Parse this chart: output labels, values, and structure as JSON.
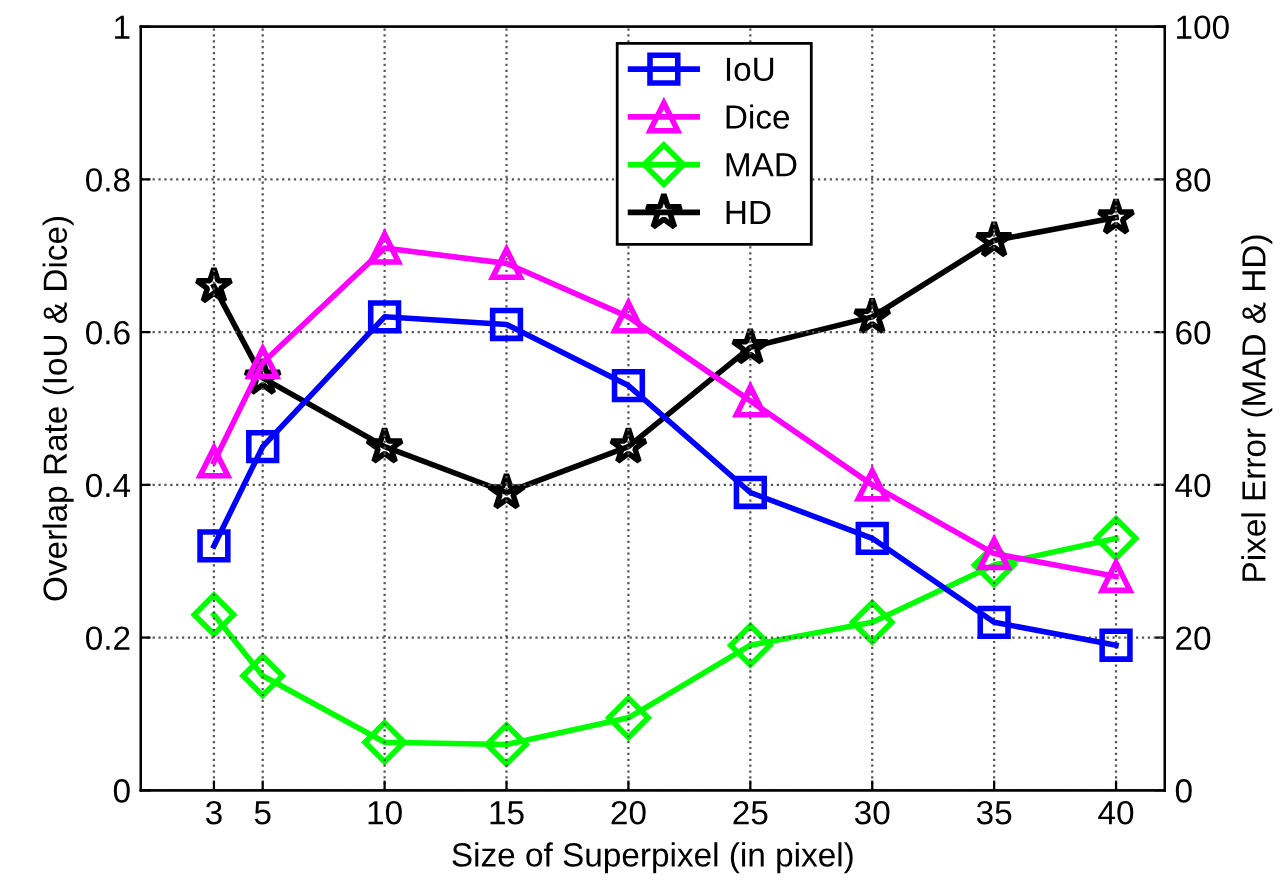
{
  "chart_data": {
    "type": "line",
    "xlabel": "Size of Superpixel (in pixel)",
    "ylabel": "Overlap Rate (IoU & Dice)",
    "y2label": "Pixel Error (MAD & HD)",
    "x": [
      3,
      5,
      10,
      15,
      20,
      25,
      30,
      35,
      40
    ],
    "xlim": [
      0,
      42
    ],
    "xticks": [
      3,
      5,
      10,
      15,
      20,
      25,
      30,
      35,
      40
    ],
    "ylim": [
      0,
      1
    ],
    "yticks": [
      0,
      0.2,
      0.4,
      0.6,
      0.8,
      1
    ],
    "y2lim": [
      0,
      100
    ],
    "y2ticks": [
      0,
      20,
      40,
      60,
      80,
      100
    ],
    "grid": true,
    "legend": "top",
    "line_style": "solid",
    "series": [
      {
        "name": "IoU",
        "color": "#0000ff",
        "marker": "square",
        "values": [
          0.32,
          0.45,
          0.62,
          0.61,
          0.53,
          0.39,
          0.33,
          0.22,
          0.19
        ]
      },
      {
        "name": "Dice",
        "color": "#ff00ff",
        "marker": "triangle",
        "values": [
          0.43,
          0.56,
          0.71,
          0.69,
          0.62,
          0.51,
          0.4,
          0.31,
          0.28
        ]
      },
      {
        "name": "MAD",
        "color": "#00ff00",
        "marker": "diamond",
        "axis": "y2",
        "values": [
          23,
          15,
          6.3,
          6,
          9.5,
          19,
          22,
          29.5,
          33
        ]
      },
      {
        "name": "HD",
        "color": "#000000",
        "marker": "star",
        "axis": "y2",
        "values": [
          66,
          54,
          45,
          39,
          45,
          58,
          62,
          72,
          75
        ]
      }
    ]
  }
}
